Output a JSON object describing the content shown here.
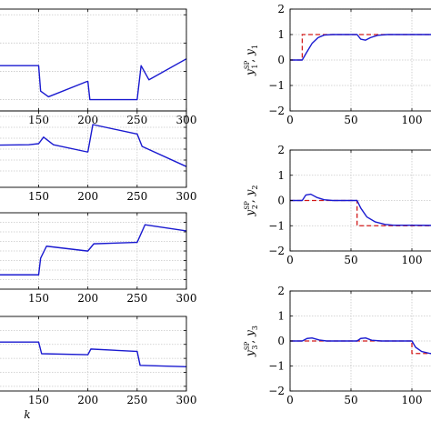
{
  "chart_data": [
    {
      "type": "line",
      "panel": "left-1",
      "xlim": [
        0,
        300
      ],
      "xticks": [
        "150",
        "200",
        "250",
        "300"
      ],
      "grid": true,
      "series": [
        {
          "color": "#1a1ad0",
          "x": [
            0,
            140,
            150,
            152,
            160,
            199,
            200,
            202,
            249,
            250,
            254,
            262,
            300
          ],
          "y": [
            0.6,
            0.6,
            0.6,
            0.15,
            0.05,
            0.32,
            0.32,
            0.0,
            0.0,
            0.0,
            0.6,
            0.35,
            0.72
          ]
        }
      ]
    },
    {
      "type": "line",
      "panel": "left-2",
      "xlim": [
        0,
        300
      ],
      "xticks": [
        "150",
        "200",
        "250",
        "300"
      ],
      "grid": true,
      "series": [
        {
          "color": "#1a1ad0",
          "x": [
            0,
            140,
            150,
            155,
            165,
            199,
            200,
            205,
            249,
            250,
            255,
            300
          ],
          "y": [
            0.55,
            0.58,
            0.6,
            0.72,
            0.58,
            0.45,
            0.45,
            0.95,
            0.78,
            0.78,
            0.55,
            0.18
          ]
        }
      ]
    },
    {
      "type": "line",
      "panel": "left-3",
      "xlim": [
        0,
        300
      ],
      "xticks": [
        "150",
        "200",
        "250",
        "300"
      ],
      "grid": true,
      "series": [
        {
          "color": "#1a1ad0",
          "x": [
            0,
            149,
            150,
            152,
            158,
            199,
            200,
            206,
            249,
            250,
            258,
            300
          ],
          "y": [
            0.3,
            0.3,
            0.3,
            0.65,
            0.9,
            0.8,
            0.8,
            0.95,
            0.98,
            0.98,
            1.35,
            1.22
          ]
        }
      ]
    },
    {
      "type": "line",
      "panel": "left-4",
      "xlim": [
        0,
        300
      ],
      "xticks": [
        "150",
        "200",
        "250",
        "300"
      ],
      "xlabel": "k",
      "grid": true,
      "series": [
        {
          "color": "#1a1ad0",
          "x": [
            0,
            149,
            150,
            153,
            199,
            200,
            203,
            249,
            250,
            253,
            300
          ],
          "y": [
            0.05,
            0.05,
            0.05,
            -0.2,
            -0.22,
            -0.22,
            -0.1,
            -0.15,
            -0.15,
            -0.45,
            -0.48
          ]
        }
      ]
    },
    {
      "type": "line",
      "panel": "right-1",
      "xlim": [
        0,
        150
      ],
      "ylim": [
        -2,
        2
      ],
      "xticks": [
        "0",
        "50",
        "100"
      ],
      "yticks": [
        "2",
        "1",
        "0",
        "-1",
        "-2"
      ],
      "grid": true,
      "ylabel_sp": "SP",
      "ylabel_y": "y",
      "ylabel_sub": "1",
      "series": [
        {
          "name_role": "setpoint",
          "color": "#d21a1a",
          "dash": true,
          "x": [
            0,
            10,
            10,
            150
          ],
          "y": [
            0,
            0,
            1,
            1
          ]
        },
        {
          "name_role": "output",
          "color": "#1a1ad0",
          "x": [
            0,
            10,
            13,
            18,
            23,
            28,
            35,
            55,
            58,
            62,
            66,
            72,
            80,
            150
          ],
          "y": [
            0,
            0,
            0.25,
            0.65,
            0.88,
            0.98,
            1.0,
            1.0,
            0.82,
            0.78,
            0.88,
            0.97,
            1.0,
            1.0
          ]
        }
      ]
    },
    {
      "type": "line",
      "panel": "right-2",
      "xlim": [
        0,
        150
      ],
      "ylim": [
        -2,
        2
      ],
      "xticks": [
        "0",
        "50",
        "100"
      ],
      "yticks": [
        "2",
        "1",
        "0",
        "-1",
        "-2"
      ],
      "grid": true,
      "ylabel_sp": "SP",
      "ylabel_y": "y",
      "ylabel_sub": "2",
      "series": [
        {
          "name_role": "setpoint",
          "color": "#d21a1a",
          "dash": true,
          "x": [
            0,
            55,
            55,
            150
          ],
          "y": [
            0,
            0,
            -1,
            -1
          ]
        },
        {
          "name_role": "output",
          "color": "#1a1ad0",
          "x": [
            0,
            10,
            13,
            17,
            22,
            28,
            35,
            55,
            58,
            63,
            70,
            78,
            85,
            100,
            150
          ],
          "y": [
            0,
            0,
            0.22,
            0.25,
            0.12,
            0.03,
            0,
            0,
            -0.3,
            -0.65,
            -0.85,
            -0.95,
            -0.98,
            -0.98,
            -1.0
          ]
        }
      ]
    },
    {
      "type": "line",
      "panel": "right-3",
      "xlim": [
        0,
        150
      ],
      "ylim": [
        -2,
        2
      ],
      "xticks": [
        "0",
        "50",
        "100"
      ],
      "yticks": [
        "2",
        "1",
        "0",
        "-1",
        "-2"
      ],
      "grid": true,
      "ylabel_sp": "SP",
      "ylabel_y": "y",
      "ylabel_sub": "3",
      "series": [
        {
          "name_role": "setpoint",
          "color": "#d21a1a",
          "dash": true,
          "x": [
            0,
            100,
            100,
            150
          ],
          "y": [
            0,
            0,
            -0.5,
            -0.5
          ]
        },
        {
          "name_role": "output",
          "color": "#1a1ad0",
          "x": [
            0,
            10,
            14,
            18,
            24,
            30,
            55,
            58,
            62,
            67,
            75,
            100,
            103,
            108,
            115,
            125,
            150
          ],
          "y": [
            0,
            0,
            0.1,
            0.12,
            0.04,
            0,
            0,
            0.1,
            0.12,
            0.03,
            0,
            0,
            -0.25,
            -0.42,
            -0.5,
            -0.5,
            -0.5
          ]
        }
      ]
    }
  ]
}
